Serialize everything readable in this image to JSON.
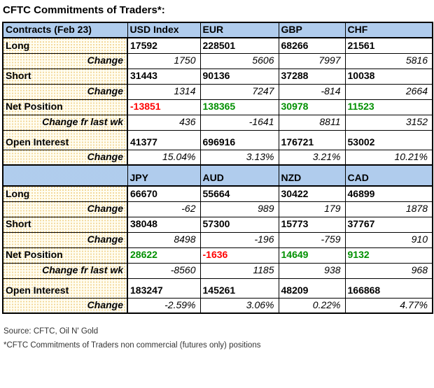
{
  "title": "CFTC Commitments of Traders*:",
  "colors": {
    "positive": "#009000",
    "negative": "#ff0000",
    "header_bg": "#b9d3f0",
    "label_bg": "#fffdf1"
  },
  "chart_data": [
    {
      "type": "table",
      "title": "CFTC Commitments of Traders - majors vs USD (Feb 23)",
      "columns": [
        "Contracts (Feb 23)",
        "USD Index",
        "EUR",
        "GBP",
        "CHF"
      ],
      "rows": [
        {
          "label": "Long",
          "style": "value",
          "values": [
            "17592",
            "228501",
            "68266",
            "21561"
          ]
        },
        {
          "label": "Change",
          "style": "change",
          "values": [
            "1750",
            "5606",
            "7997",
            "5816"
          ]
        },
        {
          "label": "Short",
          "style": "value",
          "values": [
            "31443",
            "90136",
            "37288",
            "10038"
          ]
        },
        {
          "label": "Change",
          "style": "change",
          "values": [
            "1314",
            "7247",
            "-814",
            "2664"
          ]
        },
        {
          "label": "Net Position",
          "style": "value",
          "values": [
            "-13851",
            "138365",
            "30978",
            "11523"
          ],
          "colors": [
            "neg",
            "pos",
            "pos",
            "pos"
          ]
        },
        {
          "label": "Change fr last wk",
          "style": "change",
          "values": [
            "436",
            "-1641",
            "8811",
            "3152"
          ]
        },
        {
          "label": "Open Interest",
          "style": "value",
          "values": [
            "41377",
            "696916",
            "176721",
            "53002"
          ],
          "tall": true
        },
        {
          "label": "Change",
          "style": "change",
          "values": [
            "15.04%",
            "3.13%",
            "3.21%",
            "10.21%"
          ]
        }
      ]
    },
    {
      "type": "table",
      "title": "CFTC Commitments of Traders - other currencies (Feb 23)",
      "columns": [
        "",
        "JPY",
        "AUD",
        "NZD",
        "CAD"
      ],
      "rows": [
        {
          "label": "Long",
          "style": "value",
          "values": [
            "66670",
            "55664",
            "30422",
            "46899"
          ]
        },
        {
          "label": "Change",
          "style": "change",
          "values": [
            "-62",
            "989",
            "179",
            "1878"
          ]
        },
        {
          "label": "Short",
          "style": "value",
          "values": [
            "38048",
            "57300",
            "15773",
            "37767"
          ]
        },
        {
          "label": "Change",
          "style": "change",
          "values": [
            "8498",
            "-196",
            "-759",
            "910"
          ]
        },
        {
          "label": "Net Position",
          "style": "value",
          "values": [
            "28622",
            "-1636",
            "14649",
            "9132"
          ],
          "colors": [
            "pos",
            "neg",
            "pos",
            "pos"
          ]
        },
        {
          "label": "Change fr last wk",
          "style": "change",
          "values": [
            "-8560",
            "1185",
            "938",
            "968"
          ]
        },
        {
          "label": "Open Interest",
          "style": "value",
          "values": [
            "183247",
            "145261",
            "48209",
            "166868"
          ],
          "tall": true
        },
        {
          "label": "Change",
          "style": "change",
          "values": [
            "-2.59%",
            "3.06%",
            "0.22%",
            "4.77%"
          ]
        }
      ]
    }
  ],
  "footer": {
    "source": "Source: CFTC, Oil N' Gold",
    "footnote": "*CFTC Commitments of Traders non commercial (futures only) positions"
  }
}
